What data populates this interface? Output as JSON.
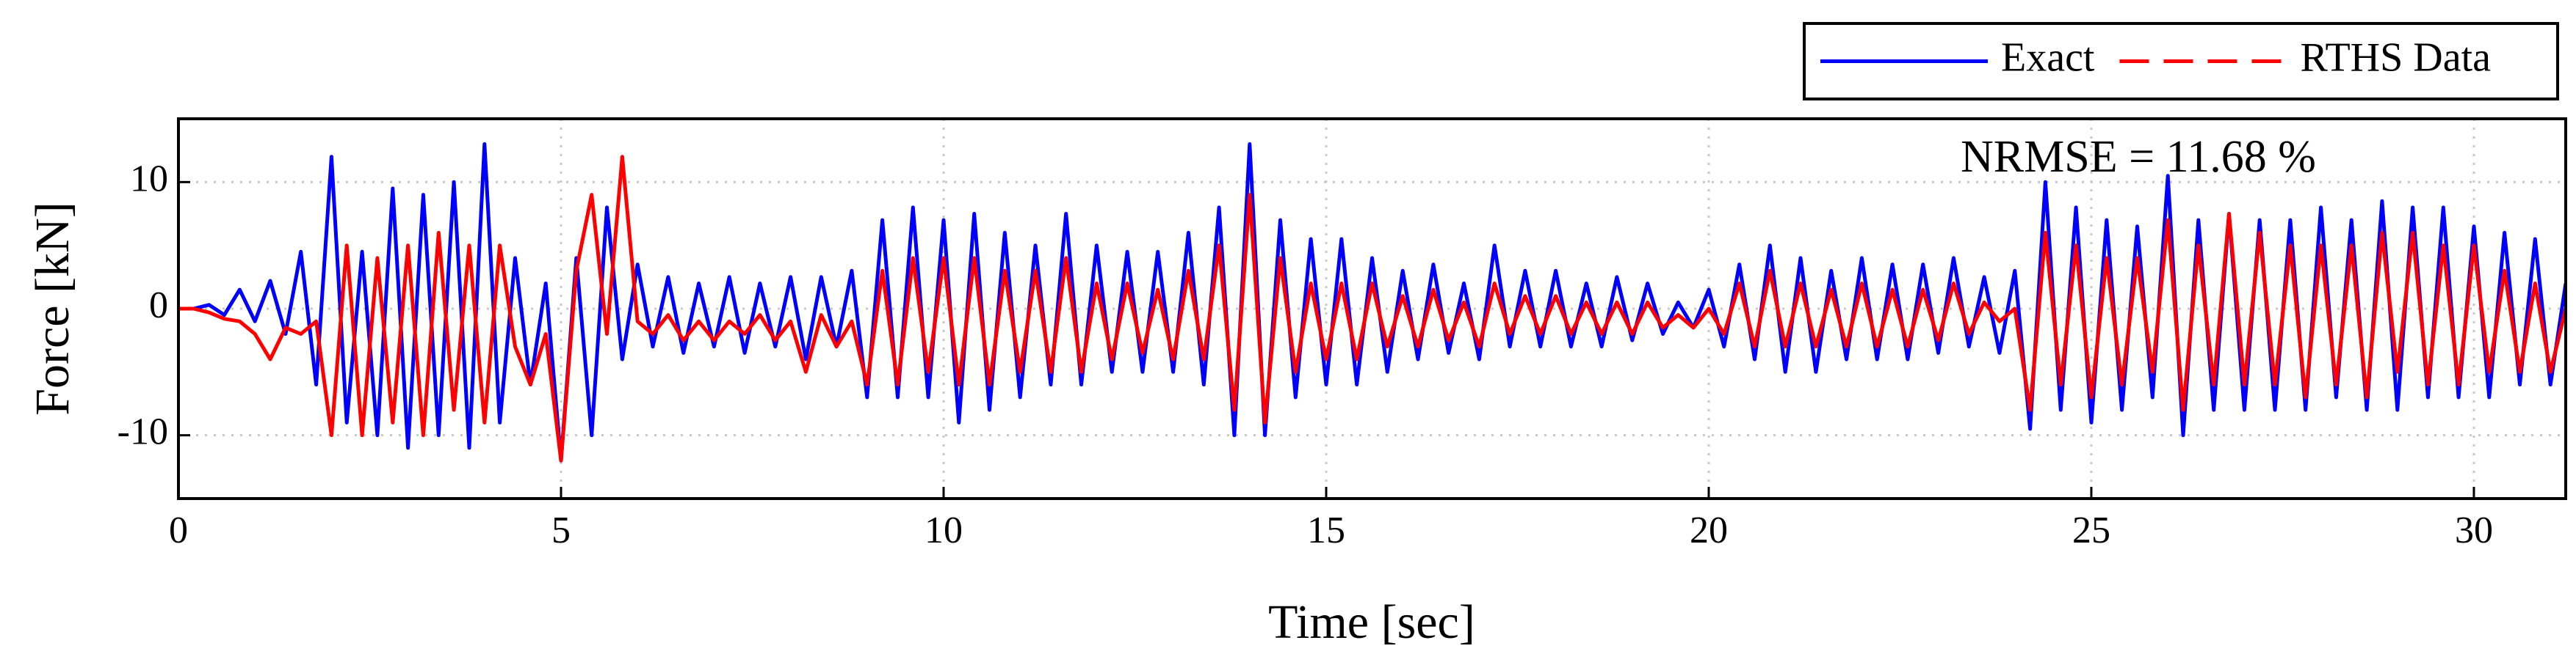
{
  "chart_data": {
    "type": "line",
    "xlabel": "Time [sec]",
    "ylabel": "Force [kN]",
    "annotation": "NRMSE = 11.68 %",
    "x": [
      0,
      0.2,
      0.4,
      0.6,
      0.8,
      1,
      1.2,
      1.4,
      1.6,
      1.8,
      2,
      2.2,
      2.4,
      2.6,
      2.8,
      3,
      3.2,
      3.4,
      3.6,
      3.8,
      4,
      4.2,
      4.4,
      4.6,
      4.8,
      5,
      5.2,
      5.4,
      5.6,
      5.8,
      6,
      6.2,
      6.4,
      6.6,
      6.8,
      7,
      7.2,
      7.4,
      7.6,
      7.8,
      8,
      8.2,
      8.4,
      8.6,
      8.8,
      9,
      9.2,
      9.4,
      9.6,
      9.8,
      10,
      10.2,
      10.4,
      10.6,
      10.8,
      11,
      11.2,
      11.4,
      11.6,
      11.8,
      12,
      12.2,
      12.4,
      12.6,
      12.8,
      13,
      13.2,
      13.4,
      13.6,
      13.8,
      14,
      14.2,
      14.4,
      14.6,
      14.8,
      15,
      15.2,
      15.4,
      15.6,
      15.8,
      16,
      16.2,
      16.4,
      16.6,
      16.8,
      17,
      17.2,
      17.4,
      17.6,
      17.8,
      18,
      18.2,
      18.4,
      18.6,
      18.8,
      19,
      19.2,
      19.4,
      19.6,
      19.8,
      20,
      20.2,
      20.4,
      20.6,
      20.8,
      21,
      21.2,
      21.4,
      21.6,
      21.8,
      22,
      22.2,
      22.4,
      22.6,
      22.8,
      23,
      23.2,
      23.4,
      23.6,
      23.8,
      24,
      24.2,
      24.4,
      24.6,
      24.8,
      25,
      25.2,
      25.4,
      25.6,
      25.8,
      26,
      26.2,
      26.4,
      26.6,
      26.8,
      27,
      27.2,
      27.4,
      27.6,
      27.8,
      28,
      28.2,
      28.4,
      28.6,
      28.8,
      29,
      29.2,
      29.4,
      29.6,
      29.8,
      30,
      30.2,
      30.4,
      30.6,
      30.8,
      31,
      31.2
    ],
    "series": [
      {
        "name": "Exact",
        "color": "#0000ff",
        "dash": false,
        "values": [
          0,
          0,
          0.3,
          -0.5,
          1.5,
          -1,
          2.2,
          -2,
          4.5,
          -6,
          12,
          -9,
          4.5,
          -10,
          9.5,
          -11,
          9,
          -10,
          10,
          -11,
          13,
          -9,
          4,
          -6,
          2,
          -12,
          4,
          -10,
          8,
          -4,
          3.5,
          -3,
          2.5,
          -3.5,
          2,
          -3,
          2.5,
          -3.5,
          2,
          -3,
          2.5,
          -4,
          2.5,
          -3,
          3,
          -7,
          7,
          -7,
          8,
          -7,
          7,
          -9,
          7.5,
          -8,
          6,
          -7,
          5,
          -6,
          7.5,
          -6,
          5,
          -5,
          4.5,
          -5,
          4.5,
          -5,
          6,
          -6,
          8,
          -10,
          13,
          -10,
          7,
          -7,
          5.5,
          -6,
          5.5,
          -6,
          4,
          -5,
          3,
          -4,
          3.5,
          -3.5,
          2,
          -4,
          5,
          -3,
          3,
          -3,
          3,
          -3,
          2,
          -3,
          2.5,
          -2.5,
          2,
          -2,
          0.5,
          -1.5,
          1.5,
          -3,
          3.5,
          -4,
          5,
          -5,
          4,
          -5,
          3,
          -4,
          4,
          -4,
          3.5,
          -4,
          3.5,
          -3.5,
          4,
          -3,
          2.5,
          -3.5,
          3,
          -9.5,
          10,
          -8,
          8,
          -9,
          7,
          -8,
          6.5,
          -7,
          10.5,
          -10,
          7,
          -8,
          7.5,
          -8,
          7,
          -8,
          7,
          -8,
          8,
          -7,
          7,
          -8,
          8.5,
          -8,
          8,
          -7,
          8,
          -7,
          6.5,
          -7,
          6,
          -6,
          5.5,
          -6,
          2
        ]
      },
      {
        "name": "RTHS Data",
        "color": "#ff0000",
        "dash": true,
        "values": [
          0,
          0,
          -0.3,
          -0.8,
          -1,
          -2,
          -4,
          -1.5,
          -2,
          -1,
          -10,
          5,
          -10,
          4,
          -9,
          5,
          -10,
          6,
          -8,
          5,
          -9,
          5,
          -3,
          -6,
          -2,
          -12,
          3,
          9,
          -2,
          12,
          -1,
          -2,
          -0.5,
          -2.5,
          -1,
          -2.5,
          -1,
          -2,
          -0.5,
          -2.5,
          -1,
          -5,
          -0.5,
          -3,
          -1,
          -6,
          3,
          -6,
          4,
          -5,
          4,
          -6,
          4,
          -6,
          3,
          -5,
          3,
          -5,
          4,
          -5,
          2,
          -4,
          2,
          -3.5,
          1.5,
          -4,
          3,
          -4,
          5,
          -8,
          9,
          -9,
          4,
          -5,
          2,
          -4,
          2,
          -4,
          2,
          -3,
          1,
          -3,
          1.5,
          -2.5,
          0.5,
          -3,
          2,
          -2,
          1,
          -2,
          1,
          -2,
          0.5,
          -2,
          0.5,
          -2,
          0.5,
          -1.5,
          -0.5,
          -1.5,
          0,
          -2,
          2,
          -3,
          3,
          -3,
          2,
          -3,
          1.5,
          -3,
          2,
          -3,
          1.5,
          -3,
          1.5,
          -2.5,
          2,
          -2,
          0.5,
          -1,
          0,
          -8,
          6,
          -6,
          5,
          -7,
          4,
          -6,
          4,
          -5,
          7,
          -8,
          5,
          -6,
          7.5,
          -6,
          6,
          -6,
          5,
          -7,
          5,
          -6,
          5,
          -7,
          6,
          -5,
          6,
          -6,
          5,
          -6,
          5,
          -5,
          3,
          -5,
          2,
          -5,
          0
        ]
      }
    ],
    "xlim": [
      0,
      31.2
    ],
    "xticks": [
      0,
      5,
      10,
      15,
      20,
      25,
      30
    ],
    "ylim": [
      -15,
      15
    ],
    "yticks": [
      -10,
      0,
      10
    ],
    "grid": true,
    "legend": "top-right"
  }
}
